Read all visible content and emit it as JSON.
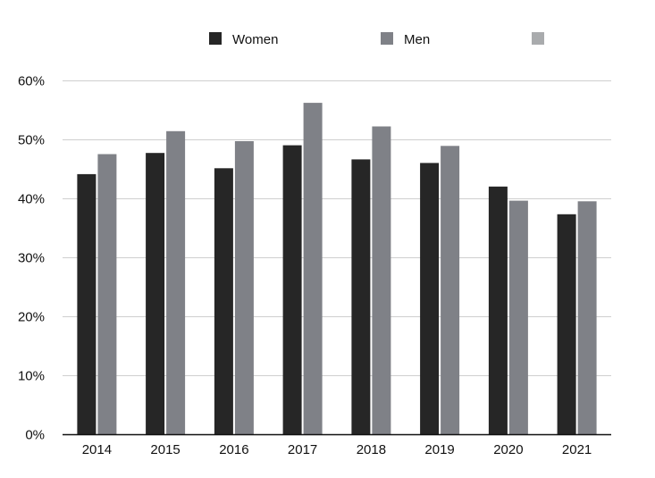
{
  "chart_data": {
    "type": "bar",
    "title": "",
    "xlabel": "",
    "ylabel": "",
    "categories": [
      "2014",
      "2015",
      "2016",
      "2017",
      "2018",
      "2019",
      "2020",
      "2021"
    ],
    "series": [
      {
        "name": "Women",
        "color": "#262626",
        "values": [
          44.1,
          47.7,
          45.1,
          49.0,
          46.6,
          46.0,
          42.0,
          37.3
        ]
      },
      {
        "name": "Men",
        "color": "#7f8187",
        "values": [
          47.5,
          51.4,
          49.7,
          56.2,
          52.2,
          48.9,
          39.6,
          39.5
        ]
      }
    ],
    "legend_extra_swatch_color": "#a9abad",
    "ylim": [
      0,
      60
    ],
    "yticks": [
      0,
      10,
      20,
      30,
      40,
      50,
      60
    ],
    "ytick_labels": [
      "0%",
      "10%",
      "20%",
      "30%",
      "40%",
      "50%",
      "60%"
    ],
    "grid": true,
    "legend_position": "top-center"
  }
}
